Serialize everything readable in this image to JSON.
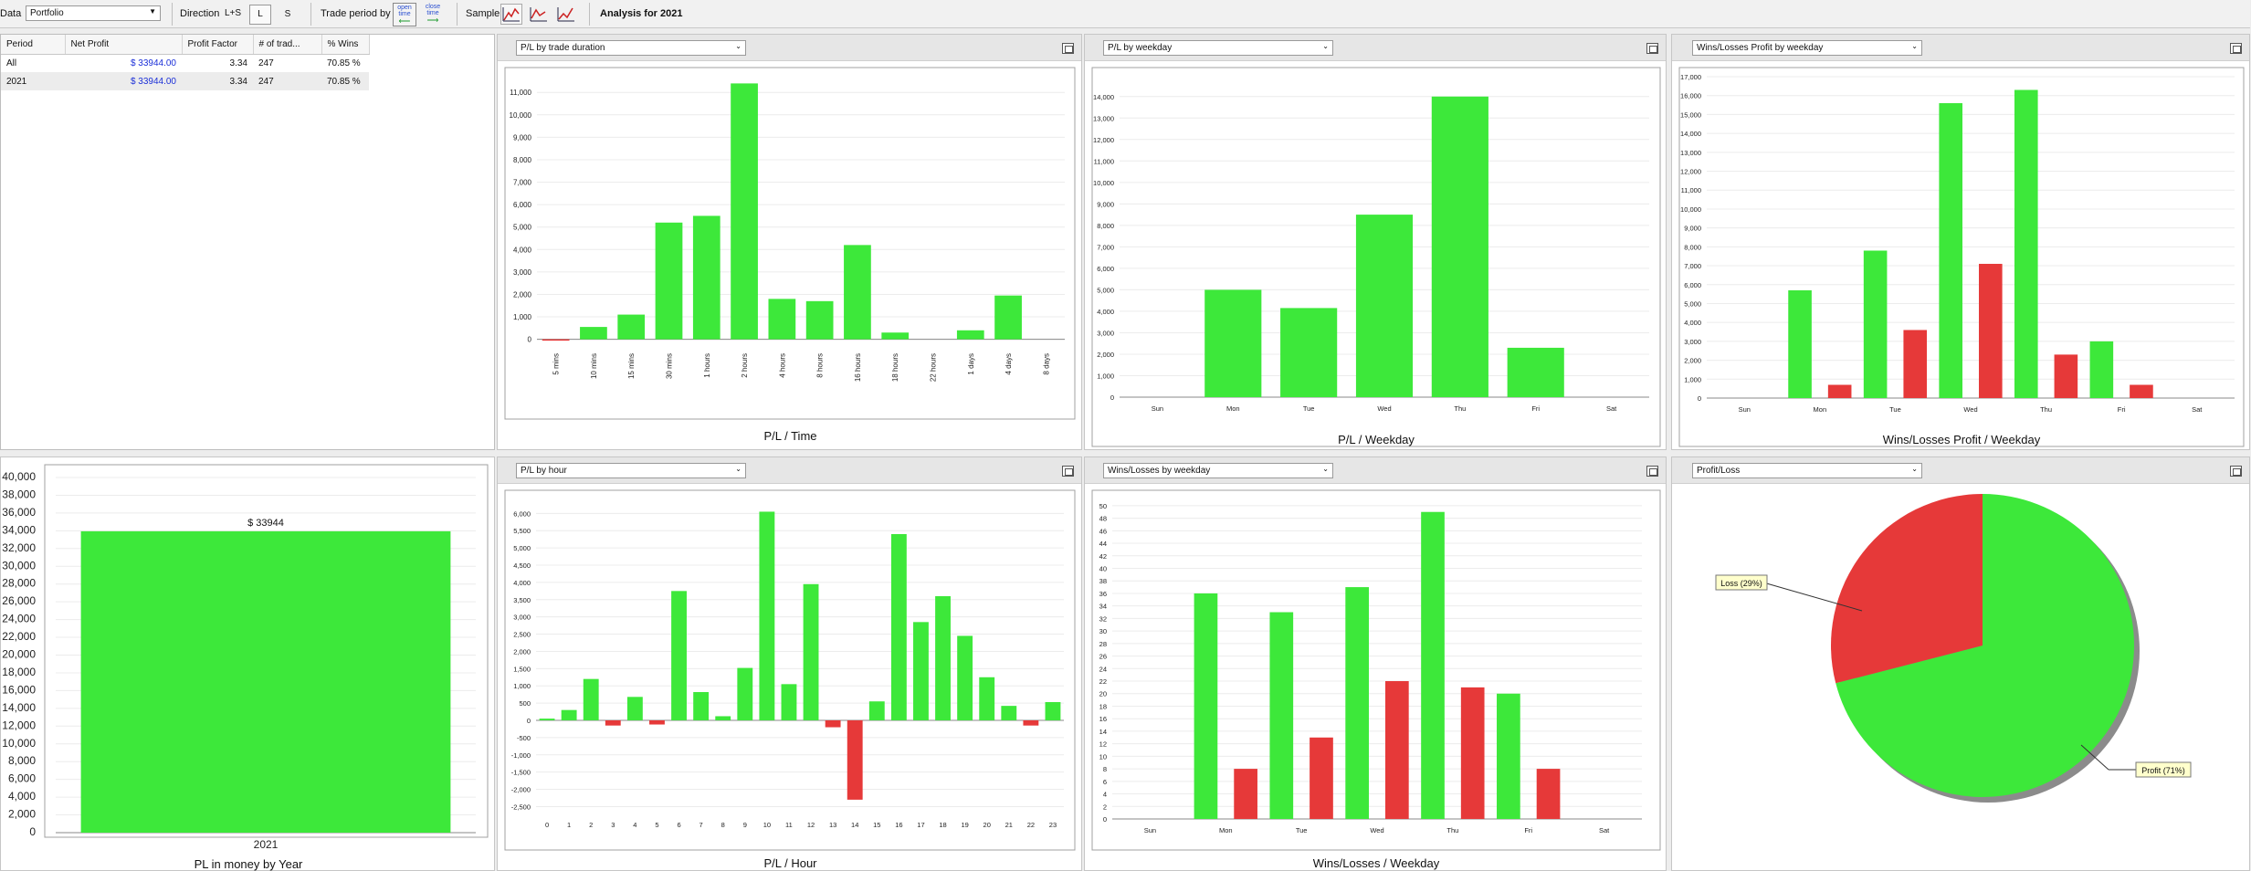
{
  "toolbar": {
    "data_label": "Data",
    "data_value": "Portfolio",
    "direction_label": "Direction",
    "direction_all": "L+S",
    "direction_long": "L",
    "direction_short": "S",
    "trade_period_label": "Trade period by",
    "open_time": "open time",
    "close_time": "close time",
    "sample_label": "Sample",
    "analysis_title": "Analysis for 2021"
  },
  "table": {
    "headers": [
      "Period",
      "Net Profit",
      "Profit Factor",
      "# of trad...",
      "% Wins"
    ],
    "rows": [
      [
        "All",
        "$ 33944.00",
        "3.34",
        "247",
        "70.85 %"
      ],
      [
        "2021",
        "$ 33944.00",
        "3.34",
        "247",
        "70.85 %"
      ]
    ]
  },
  "panels": {
    "duration": {
      "select": "P/L by trade duration",
      "caption": "P/L / Time"
    },
    "weekday": {
      "select": "P/L by weekday",
      "caption": "P/L / Weekday"
    },
    "wlprofit": {
      "select": "Wins/Losses Profit by weekday",
      "caption": "Wins/Losses Profit / Weekday"
    },
    "year": {
      "caption": "PL in money by Year",
      "bar_label": "$ 33944"
    },
    "hour": {
      "select": "P/L by hour",
      "caption": "P/L / Hour"
    },
    "wlcount": {
      "select": "Wins/Losses by weekday",
      "caption": "Wins/Losses / Weekday"
    },
    "pie": {
      "select": "Profit/Loss",
      "loss_label": "Loss (29%)",
      "profit_label": "Profit (71%)"
    }
  },
  "colors": {
    "profit": "#3de83a",
    "loss": "#e63939"
  },
  "chart_data": [
    {
      "id": "duration",
      "type": "bar",
      "xlabel": "P/L / Time",
      "categories": [
        "5 mins",
        "10 mins",
        "15 mins",
        "30 mins",
        "1 hours",
        "2 hours",
        "4 hours",
        "8 hours",
        "16 hours",
        "18 hours",
        "22 hours",
        "1 days",
        "4 days",
        "8 days"
      ],
      "values": [
        -60,
        550,
        1100,
        5200,
        5500,
        11400,
        1800,
        1700,
        4200,
        300,
        0,
        400,
        1950,
        0
      ],
      "ylim": [
        -300,
        11700
      ],
      "yticks": [
        0,
        1000,
        2000,
        3000,
        4000,
        5000,
        6000,
        7000,
        8000,
        9000,
        10000,
        11000
      ]
    },
    {
      "id": "weekday",
      "type": "bar",
      "xlabel": "P/L / Weekday",
      "categories": [
        "Sun",
        "Mon",
        "Tue",
        "Wed",
        "Thu",
        "Fri",
        "Sat"
      ],
      "values": [
        0,
        5000,
        4150,
        8500,
        14000,
        2300,
        0
      ],
      "ylim": [
        0,
        14500
      ],
      "yticks": [
        0,
        1000,
        2000,
        3000,
        4000,
        5000,
        6000,
        7000,
        8000,
        9000,
        10000,
        11000,
        12000,
        13000,
        14000
      ]
    },
    {
      "id": "wlprofit",
      "type": "bar",
      "xlabel": "Wins/Losses Profit / Weekday",
      "categories": [
        "Sun",
        "Mon",
        "Tue",
        "Wed",
        "Thu",
        "Fri",
        "Sat"
      ],
      "series": [
        {
          "values": [
            0,
            5700,
            7800,
            15600,
            16300,
            3000,
            0
          ]
        },
        {
          "values": [
            0,
            700,
            3600,
            7100,
            2300,
            700,
            0
          ]
        }
      ],
      "ylim": [
        0,
        17000
      ],
      "yticks": [
        0,
        1000,
        2000,
        3000,
        4000,
        5000,
        6000,
        7000,
        8000,
        9000,
        10000,
        11000,
        12000,
        13000,
        14000,
        15000,
        16000,
        17000
      ]
    },
    {
      "id": "year",
      "type": "bar",
      "xlabel": "PL in money by Year",
      "categories": [
        "2021"
      ],
      "values": [
        33944
      ],
      "ylim": [
        0,
        40000
      ],
      "yticks": [
        0,
        2000,
        4000,
        6000,
        8000,
        10000,
        12000,
        14000,
        16000,
        18000,
        20000,
        22000,
        24000,
        26000,
        28000,
        30000,
        32000,
        34000,
        36000,
        38000,
        40000
      ]
    },
    {
      "id": "hour",
      "type": "bar",
      "xlabel": "P/L / Hour",
      "categories": [
        "0",
        "1",
        "2",
        "3",
        "4",
        "5",
        "6",
        "7",
        "8",
        "9",
        "10",
        "11",
        "12",
        "13",
        "14",
        "15",
        "16",
        "17",
        "18",
        "19",
        "20",
        "21",
        "22",
        "23"
      ],
      "values": [
        50,
        300,
        1200,
        -150,
        680,
        -120,
        3750,
        820,
        120,
        1520,
        6050,
        1050,
        3950,
        -200,
        -2300,
        550,
        5400,
        2850,
        3600,
        2450,
        1250,
        420,
        -150,
        530
      ],
      "ylim": [
        -2700,
        6300
      ],
      "yticks": [
        -2500,
        -2000,
        -1500,
        -1000,
        -500,
        0,
        500,
        1000,
        1500,
        2000,
        2500,
        3000,
        3500,
        4000,
        4500,
        5000,
        5500,
        6000
      ]
    },
    {
      "id": "wlcount",
      "type": "bar",
      "xlabel": "Wins/Losses / Weekday",
      "categories": [
        "Sun",
        "Mon",
        "Tue",
        "Wed",
        "Thu",
        "Fri",
        "Sat"
      ],
      "series": [
        {
          "values": [
            0,
            36,
            33,
            37,
            49,
            20,
            0
          ]
        },
        {
          "values": [
            0,
            8,
            13,
            22,
            21,
            8,
            0
          ]
        }
      ],
      "ylim": [
        0,
        51
      ],
      "yticks": [
        0,
        2,
        4,
        6,
        8,
        10,
        12,
        14,
        16,
        18,
        20,
        22,
        24,
        26,
        28,
        30,
        32,
        34,
        36,
        38,
        40,
        42,
        44,
        46,
        48,
        50
      ]
    },
    {
      "id": "pie",
      "type": "pie",
      "labels": [
        "Loss (29%)",
        "Profit (71%)"
      ],
      "values": [
        29,
        71
      ]
    }
  ]
}
